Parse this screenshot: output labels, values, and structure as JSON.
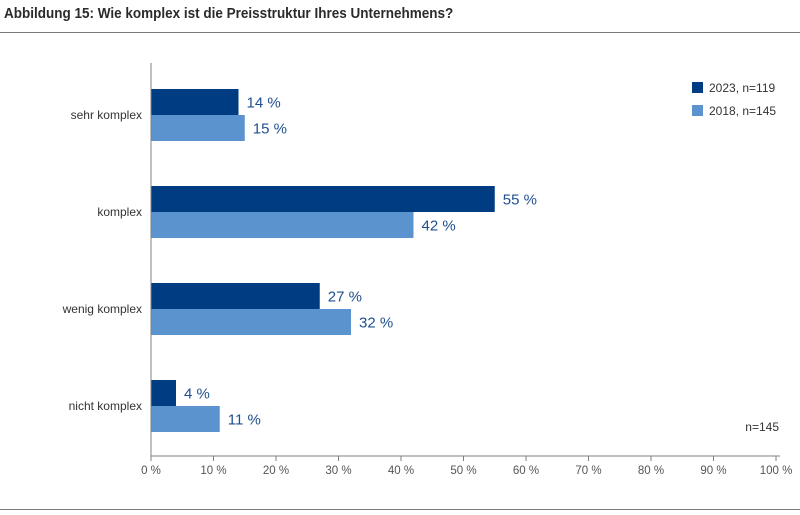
{
  "title": "Abbildung 15: Wie komplex ist die Preisstruktur Ihres Unternehmens?",
  "note": "n=145",
  "chart_data": {
    "type": "bar",
    "orientation": "horizontal",
    "categories": [
      "sehr komplex",
      "komplex",
      "wenig komplex",
      "nicht komplex"
    ],
    "series": [
      {
        "name": "2023, n=119",
        "color": "#003c82",
        "values": [
          14,
          55,
          27,
          4
        ],
        "labels": [
          "14 %",
          "55 %",
          "27 %",
          "4 %"
        ]
      },
      {
        "name": "2018, n=145",
        "color": "#5b93cf",
        "values": [
          15,
          42,
          32,
          11
        ],
        "labels": [
          "15 %",
          "42 %",
          "32 %",
          "11 %"
        ]
      }
    ],
    "xlim": [
      0,
      100
    ],
    "xticks": [
      "0 %",
      "10 %",
      "20 %",
      "30 %",
      "40 %",
      "50 %",
      "60 %",
      "70 %",
      "80 %",
      "90 %",
      "100 %"
    ],
    "grid": false,
    "legend_position": "top-right"
  }
}
